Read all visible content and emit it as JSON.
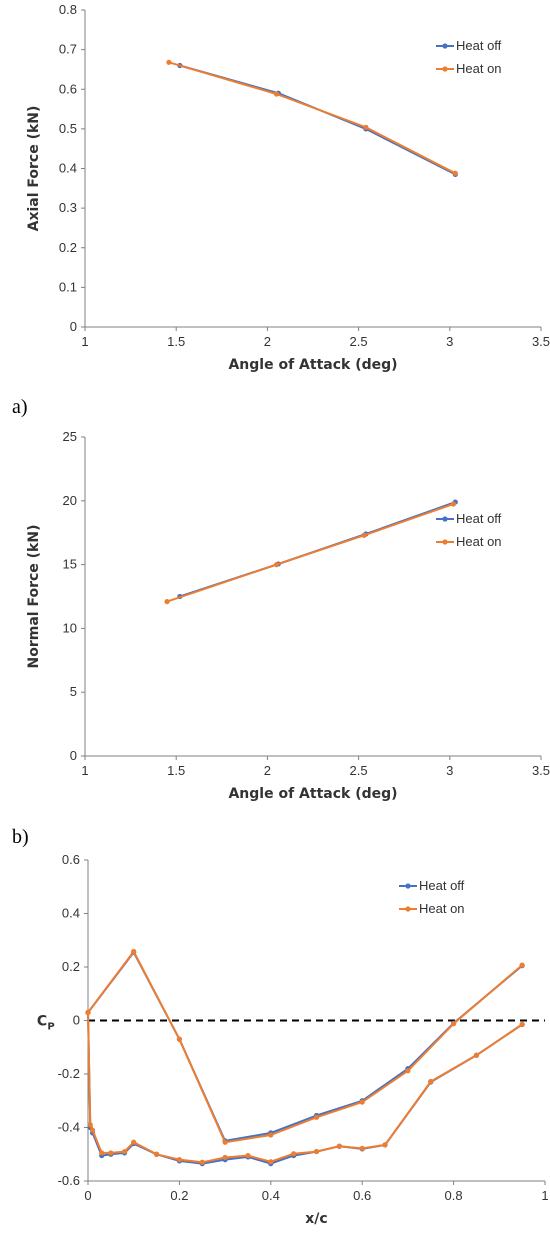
{
  "panel_labels": {
    "a": "a)",
    "b": "b)"
  },
  "colors": {
    "heat_off": "#4472C4",
    "heat_on": "#ED7D31",
    "axis": "#808080",
    "text": "#333333"
  },
  "chart_data": [
    {
      "type": "line",
      "title": "",
      "xlabel": "Angle of Attack (deg)",
      "ylabel": "Axial Force (kN)",
      "xlim": [
        1,
        3.5
      ],
      "ylim": [
        0,
        0.8
      ],
      "xticks": [
        1,
        1.5,
        2,
        2.5,
        3,
        3.5
      ],
      "xtick_labels": [
        "1",
        "1.5",
        "2",
        "2.5",
        "3",
        "3.5"
      ],
      "yticks": [
        0,
        0.1,
        0.2,
        0.3,
        0.4,
        0.5,
        0.6,
        0.7,
        0.8
      ],
      "ytick_labels": [
        "0",
        "0.1",
        "0.2",
        "0.3",
        "0.4",
        "0.5",
        "0.6",
        "0.7",
        "0.8"
      ],
      "grid": false,
      "legend": "top-right",
      "series": [
        {
          "name": "Heat off",
          "color": "#4472C4",
          "x": [
            1.52,
            2.06,
            2.54,
            3.03
          ],
          "y": [
            0.66,
            0.59,
            0.5,
            0.385
          ]
        },
        {
          "name": "Heat on",
          "color": "#ED7D31",
          "x": [
            1.46,
            2.05,
            2.54,
            3.03
          ],
          "y": [
            0.668,
            0.588,
            0.504,
            0.388
          ]
        }
      ]
    },
    {
      "type": "line",
      "title": "",
      "xlabel": "Angle of Attack (deg)",
      "ylabel": "Normal Force (kN)",
      "xlim": [
        1,
        3.5
      ],
      "ylim": [
        0,
        25
      ],
      "xticks": [
        1,
        1.5,
        2,
        2.5,
        3,
        3.5
      ],
      "xtick_labels": [
        "1",
        "1.5",
        "2",
        "2.5",
        "3",
        "3.5"
      ],
      "yticks": [
        0,
        5,
        10,
        15,
        20,
        25
      ],
      "ytick_labels": [
        "0",
        "5",
        "10",
        "15",
        "20",
        "25"
      ],
      "grid": false,
      "legend": "right",
      "series": [
        {
          "name": "Heat off",
          "color": "#4472C4",
          "x": [
            1.52,
            2.06,
            2.54,
            3.03
          ],
          "y": [
            12.5,
            15.05,
            17.4,
            19.9
          ]
        },
        {
          "name": "Heat on",
          "color": "#ED7D31",
          "x": [
            1.45,
            2.05,
            2.53,
            3.02
          ],
          "y": [
            12.1,
            15.0,
            17.3,
            19.75
          ]
        }
      ]
    },
    {
      "type": "line",
      "title": "",
      "xlabel": "x/c",
      "ylabel": "C",
      "ylabel_sub": "P",
      "xlim": [
        0,
        1
      ],
      "ylim": [
        -0.6,
        0.6
      ],
      "xticks": [
        0,
        0.2,
        0.4,
        0.6,
        0.8,
        1
      ],
      "xtick_labels": [
        "0",
        "0.2",
        "0.4",
        "0.6",
        "0.8",
        "1"
      ],
      "yticks": [
        -0.6,
        -0.4,
        -0.2,
        0,
        0.2,
        0.4,
        0.6
      ],
      "ytick_labels": [
        "-0.6",
        "-0.4",
        "-0.2",
        "0",
        "0.2",
        "0.4",
        "0.6"
      ],
      "grid": false,
      "legend": "top-right",
      "reference_line": {
        "y": 0,
        "style": "dashed"
      },
      "series": [
        {
          "name": "Heat off",
          "color": "#4472C4",
          "segments": [
            {
              "x": [
                0,
                0.1,
                0.2,
                0.3,
                0.4,
                0.5,
                0.6,
                0.7,
                0.8,
                0.95
              ],
              "y": [
                0.03,
                0.255,
                -0.07,
                -0.45,
                -0.42,
                -0.355,
                -0.3,
                -0.18,
                -0.01,
                0.205
              ]
            },
            {
              "x": [
                0,
                0.005,
                0.01,
                0.03,
                0.05,
                0.08,
                0.1,
                0.15,
                0.2,
                0.25,
                0.3,
                0.35,
                0.4,
                0.45,
                0.5,
                0.55,
                0.6,
                0.65,
                0.75,
                0.85,
                0.95
              ],
              "y": [
                0.03,
                -0.4,
                -0.42,
                -0.505,
                -0.5,
                -0.495,
                -0.46,
                -0.5,
                -0.525,
                -0.535,
                -0.52,
                -0.51,
                -0.535,
                -0.505,
                -0.49,
                -0.47,
                -0.48,
                -0.465,
                -0.23,
                -0.13,
                -0.015
              ]
            }
          ]
        },
        {
          "name": "Heat on",
          "color": "#ED7D31",
          "segments": [
            {
              "x": [
                0,
                0.1,
                0.2,
                0.3,
                0.4,
                0.5,
                0.6,
                0.7,
                0.8,
                0.95
              ],
              "y": [
                0.03,
                0.258,
                -0.07,
                -0.455,
                -0.428,
                -0.362,
                -0.305,
                -0.188,
                -0.012,
                0.207
              ]
            },
            {
              "x": [
                0,
                0.005,
                0.01,
                0.03,
                0.05,
                0.08,
                0.1,
                0.15,
                0.2,
                0.25,
                0.3,
                0.35,
                0.4,
                0.45,
                0.5,
                0.55,
                0.6,
                0.65,
                0.75,
                0.85,
                0.95
              ],
              "y": [
                0.03,
                -0.39,
                -0.41,
                -0.495,
                -0.495,
                -0.49,
                -0.455,
                -0.5,
                -0.52,
                -0.53,
                -0.512,
                -0.505,
                -0.528,
                -0.498,
                -0.49,
                -0.47,
                -0.478,
                -0.465,
                -0.228,
                -0.13,
                -0.015
              ]
            }
          ]
        }
      ]
    }
  ]
}
